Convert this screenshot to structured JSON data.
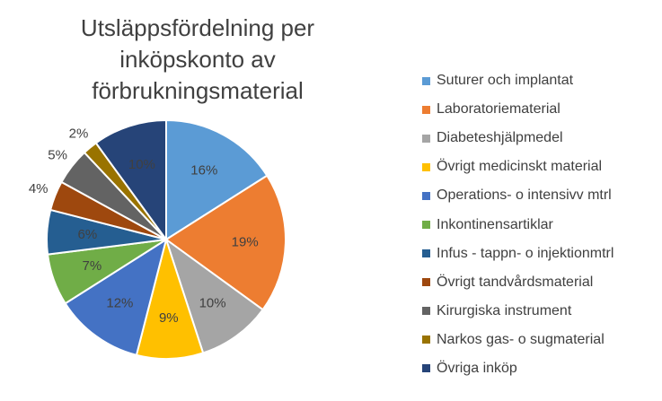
{
  "chart_data": {
    "type": "pie",
    "title": "Utsläppsfördelning per inköpskonto av förbrukningsmaterial",
    "legend_position": "right",
    "slices": [
      {
        "label": "Suturer och implantat",
        "value": 16,
        "value_label": "16%",
        "color": "#5B9BD5"
      },
      {
        "label": "Laboratoriematerial",
        "value": 19,
        "value_label": "19%",
        "color": "#ED7D31"
      },
      {
        "label": "Diabeteshjälpmedel",
        "value": 10,
        "value_label": "10%",
        "color": "#A5A5A5"
      },
      {
        "label": "Övrigt medicinskt material",
        "value": 9,
        "value_label": "9%",
        "color": "#FFC000"
      },
      {
        "label": "Operations- o intensivv mtrl",
        "value": 12,
        "value_label": "12%",
        "color": "#4472C4"
      },
      {
        "label": "Inkontinensartiklar",
        "value": 7,
        "value_label": "7%",
        "color": "#70AD47"
      },
      {
        "label": "Infus - tappn- o injektionmtrl",
        "value": 6,
        "value_label": "6%",
        "color": "#255E91"
      },
      {
        "label": "Övrigt tandvårdsmaterial",
        "value": 4,
        "value_label": "4%",
        "color": "#9E480E"
      },
      {
        "label": "Kirurgiska instrument",
        "value": 5,
        "value_label": "5%",
        "color": "#636363"
      },
      {
        "label": "Narkos  gas- o sugmaterial",
        "value": 2,
        "value_label": "2%",
        "color": "#997300"
      },
      {
        "label": "Övriga inköp",
        "value": 10,
        "value_label": "10%",
        "color": "#264478"
      }
    ]
  }
}
